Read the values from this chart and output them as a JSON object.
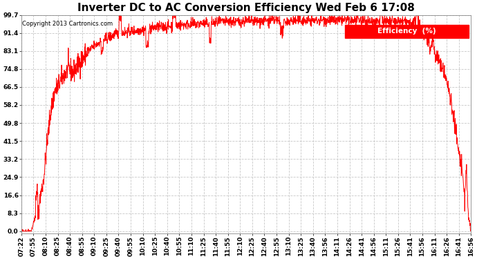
{
  "title": "Inverter DC to AC Conversion Efficiency Wed Feb 6 17:08",
  "copyright": "Copyright 2013 Cartronics.com",
  "legend_label": "Efficiency  (%)",
  "line_color": "#ff0000",
  "background_color": "#ffffff",
  "grid_color": "#c8c8c8",
  "yticks": [
    0.0,
    8.3,
    16.6,
    24.9,
    33.2,
    41.5,
    49.8,
    58.2,
    66.5,
    74.8,
    83.1,
    91.4,
    99.7
  ],
  "ylim": [
    -1.0,
    99.7
  ],
  "xtick_labels": [
    "07:22",
    "07:55",
    "08:10",
    "08:25",
    "08:40",
    "08:55",
    "09:10",
    "09:25",
    "09:40",
    "09:55",
    "10:10",
    "10:25",
    "10:40",
    "10:55",
    "11:10",
    "11:25",
    "11:40",
    "11:55",
    "12:10",
    "12:25",
    "12:40",
    "12:55",
    "13:10",
    "13:25",
    "13:40",
    "13:56",
    "14:11",
    "14:26",
    "14:41",
    "14:56",
    "15:11",
    "15:26",
    "15:41",
    "15:56",
    "16:11",
    "16:26",
    "16:41",
    "16:56"
  ],
  "title_fontsize": 11,
  "tick_fontsize": 6.5,
  "key_t": [
    0,
    0.01,
    0.018,
    0.022,
    0.03,
    0.035,
    0.038,
    0.042,
    0.05,
    0.058,
    0.065,
    0.075,
    0.085,
    0.095,
    0.105,
    0.115,
    0.13,
    0.145,
    0.16,
    0.18,
    0.21,
    0.24,
    0.27,
    0.3,
    0.33,
    0.35,
    0.38,
    0.42,
    0.45,
    0.48,
    0.5,
    0.52,
    0.55,
    0.57,
    0.59,
    0.62,
    0.65,
    0.67,
    0.7,
    0.72,
    0.74,
    0.76,
    0.78,
    0.8,
    0.82,
    0.84,
    0.86,
    0.87,
    0.875,
    0.89,
    0.9,
    0.905,
    0.91,
    0.915,
    0.92,
    0.925,
    0.93,
    0.935,
    0.94,
    0.945,
    0.95,
    0.955,
    0.96,
    0.965,
    0.97,
    0.975,
    0.98,
    0.983,
    0.986,
    0.99,
    0.993,
    0.996,
    1.0
  ],
  "key_v": [
    0,
    0,
    0,
    0,
    6,
    20,
    8,
    15,
    25,
    42,
    55,
    65,
    68,
    72,
    75,
    73,
    78,
    82,
    85,
    88,
    91,
    92,
    93,
    94,
    94.5,
    95,
    95.5,
    96,
    96.5,
    96.5,
    97,
    96.8,
    97,
    97.2,
    96.8,
    97.2,
    97,
    97.5,
    97,
    97.3,
    97,
    97.2,
    96.8,
    97,
    96.5,
    96.8,
    96.5,
    95,
    97,
    93,
    91,
    88,
    85,
    88,
    82,
    80,
    78,
    76,
    74,
    70,
    65,
    60,
    55,
    48,
    40,
    34,
    28,
    22,
    15,
    30,
    10,
    3,
    0
  ]
}
